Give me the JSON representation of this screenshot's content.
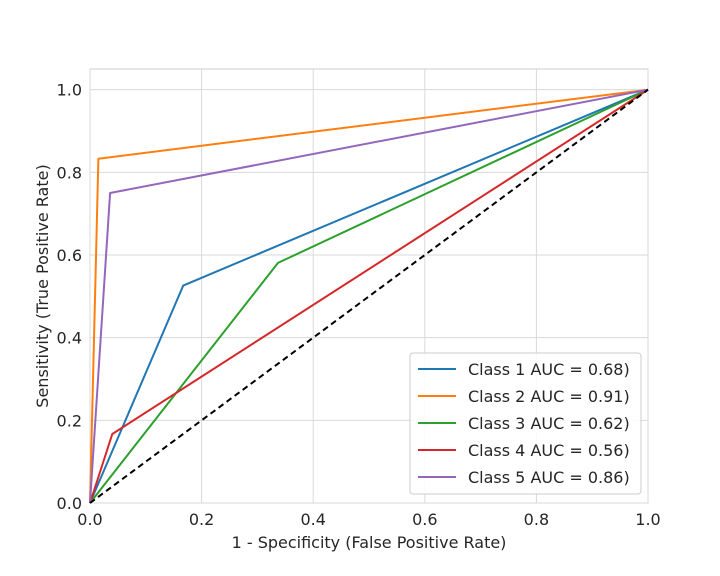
{
  "chart_data": {
    "type": "line",
    "title": "",
    "xlabel": "1 - Specificity (False Positive Rate)",
    "ylabel": "Sensitivity (True Positive Rate)",
    "xlim": [
      0,
      1
    ],
    "ylim": [
      0,
      1.05
    ],
    "xticks": [
      "0.0",
      "0.2",
      "0.4",
      "0.6",
      "0.8",
      "1.0"
    ],
    "yticks": [
      "0.0",
      "0.2",
      "0.4",
      "0.6",
      "0.8",
      "1.0"
    ],
    "grid": true,
    "legend_position": "lower-right",
    "series": [
      {
        "name": "Class 1 AUC = 0.68)",
        "color": "#1f77b4",
        "x": [
          0,
          0.167,
          1
        ],
        "y": [
          0,
          0.526,
          1
        ]
      },
      {
        "name": "Class 2 AUC = 0.91)",
        "color": "#ff7f0e",
        "x": [
          0,
          0.015,
          1
        ],
        "y": [
          0,
          0.833,
          1
        ]
      },
      {
        "name": "Class 3 AUC = 0.62)",
        "color": "#2ca02c",
        "x": [
          0,
          0.337,
          1
        ],
        "y": [
          0,
          0.581,
          1
        ]
      },
      {
        "name": "Class 4 AUC = 0.56)",
        "color": "#d62728",
        "x": [
          0,
          0.04,
          1
        ],
        "y": [
          0,
          0.167,
          1
        ]
      },
      {
        "name": "Class 5 AUC = 0.86)",
        "color": "#9467bd",
        "x": [
          0,
          0.036,
          1
        ],
        "y": [
          0,
          0.75,
          1
        ]
      }
    ],
    "reference_line": {
      "color": "#000000",
      "style": "dashed",
      "x": [
        0,
        1
      ],
      "y": [
        0,
        1
      ]
    }
  }
}
